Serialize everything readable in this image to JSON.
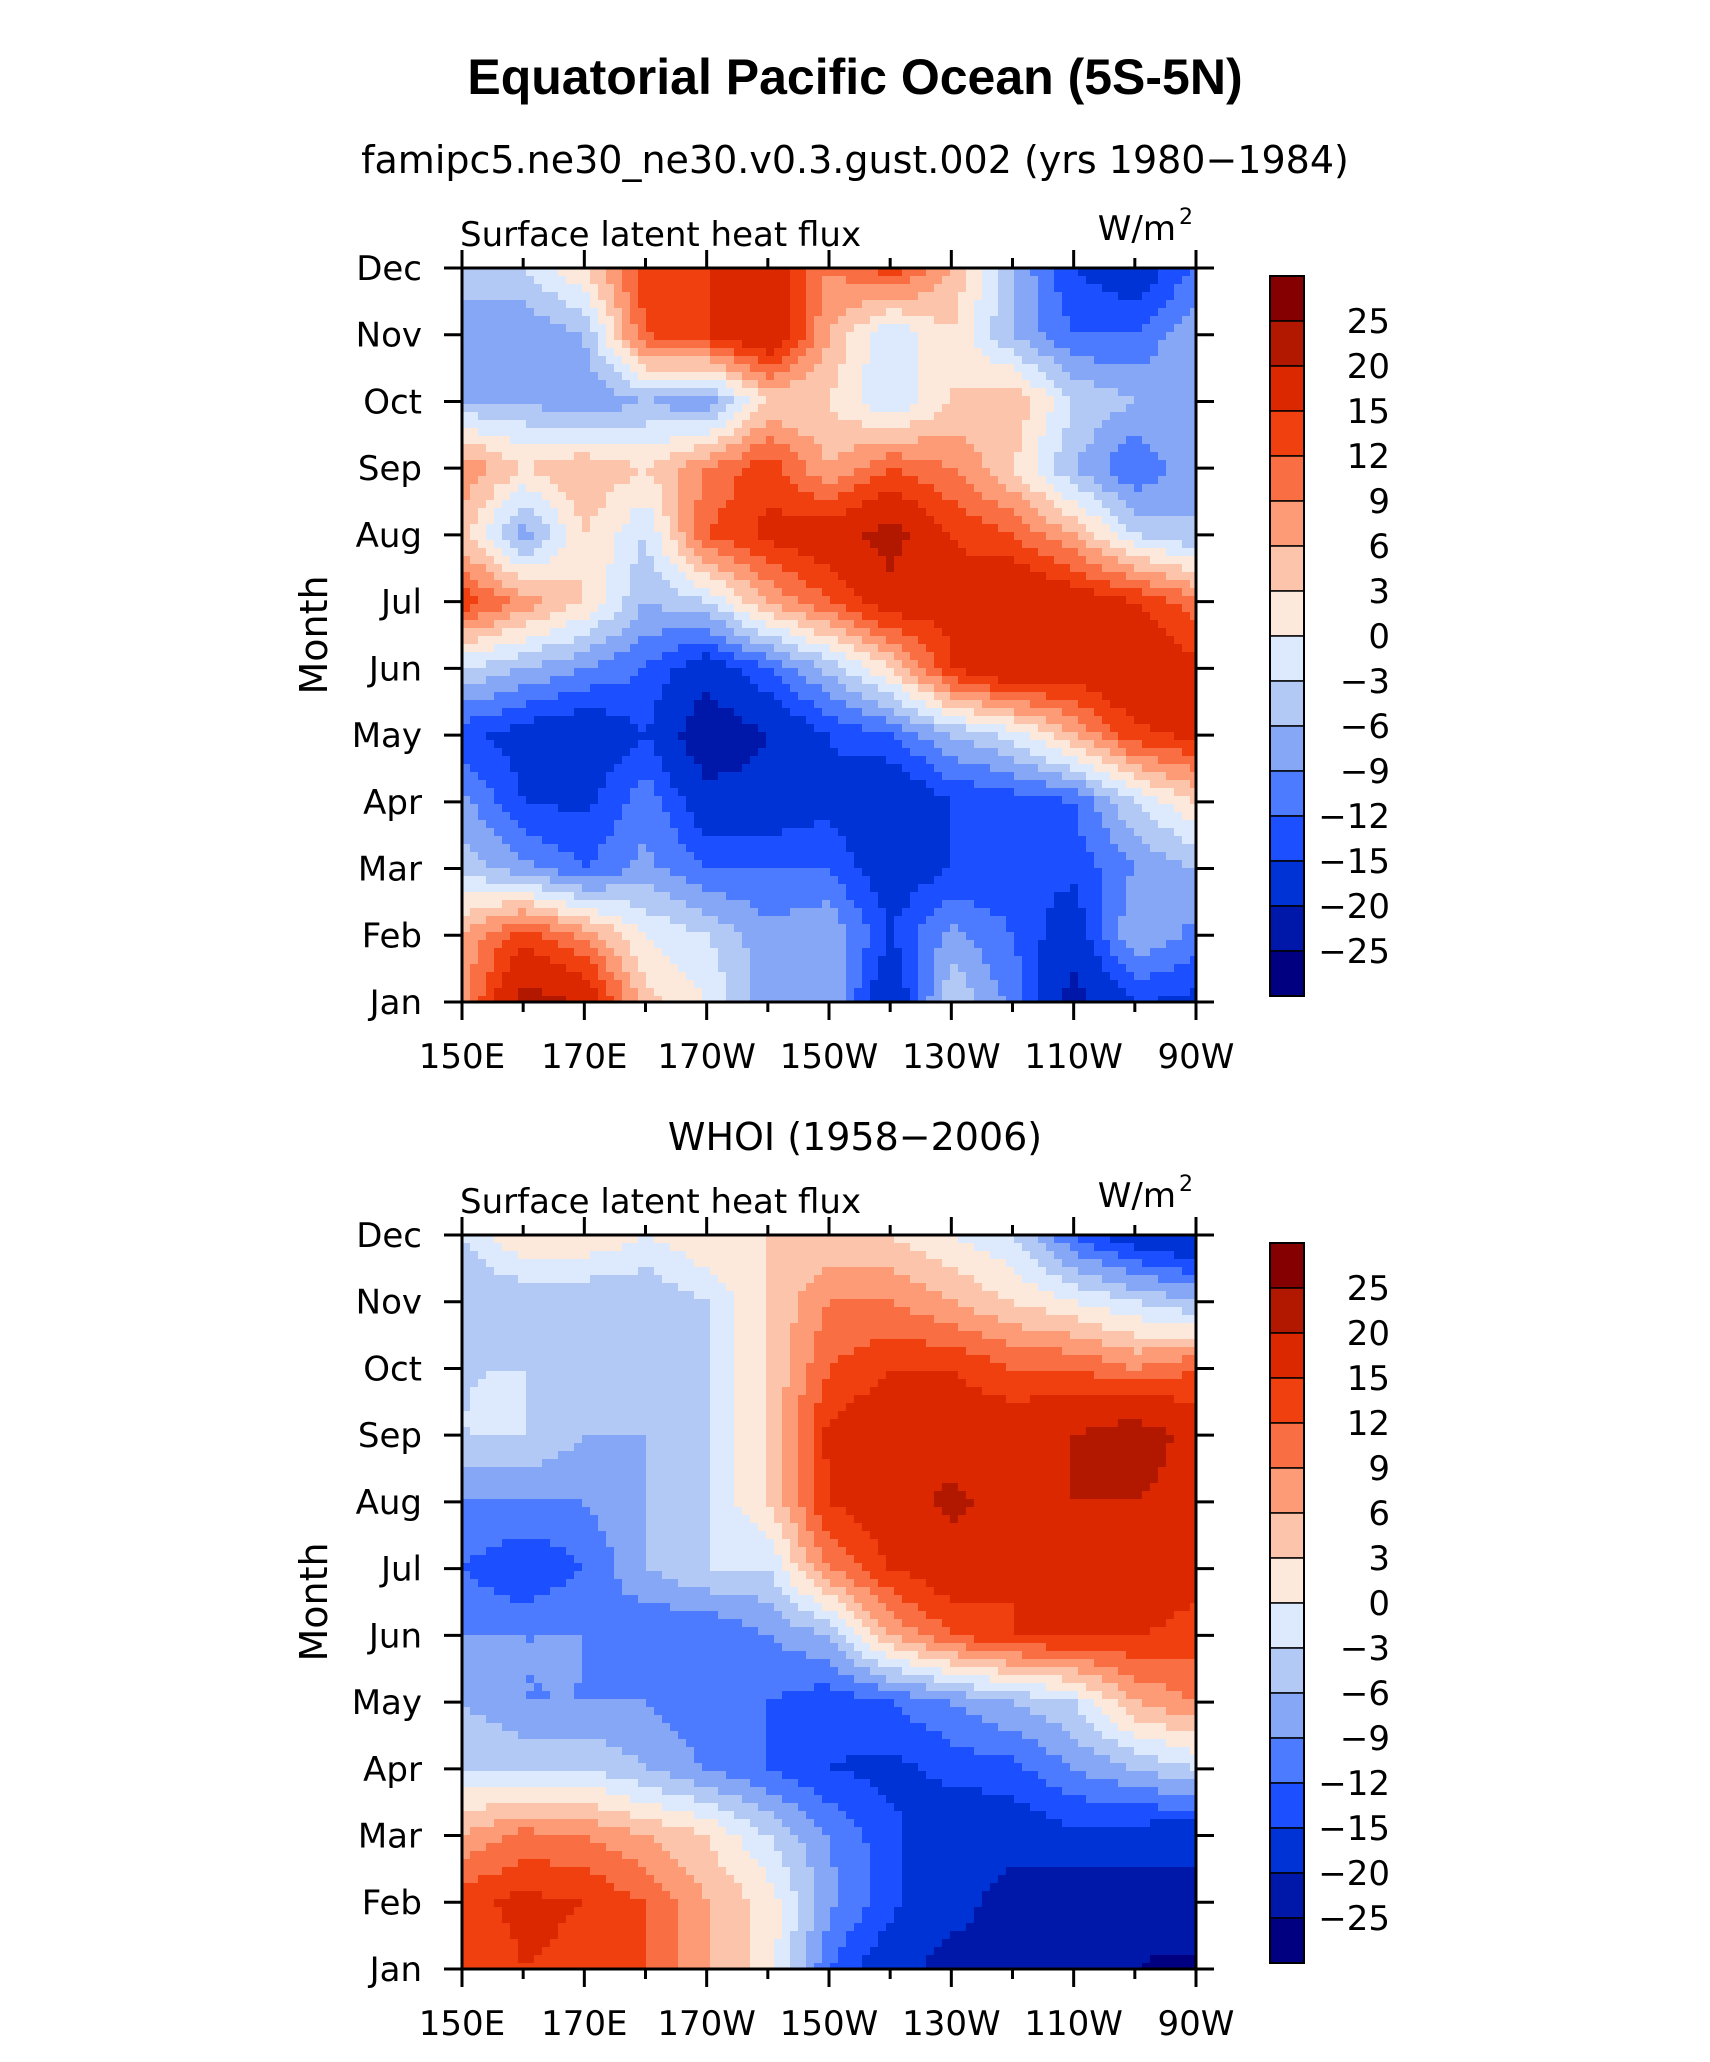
{
  "figure": {
    "title": "Equatorial Pacific Ocean (5S-5N)",
    "units": "W/m",
    "units_superscript": "2",
    "levels": [
      -25,
      -20,
      -15,
      -12,
      -9,
      -6,
      -3,
      0,
      3,
      6,
      9,
      12,
      15,
      20,
      25
    ],
    "level_labels": [
      "25",
      "20",
      "15",
      "12",
      "9",
      "6",
      "3",
      "0",
      "−3",
      "−6",
      "−9",
      "−12",
      "−15",
      "−20",
      "−25"
    ],
    "colors": [
      "#000080",
      "#0018aa",
      "#0033d6",
      "#1c4fff",
      "#4d7bff",
      "#86a7f6",
      "#b2c8f5",
      "#dde9fd",
      "#fde8dc",
      "#fcc4aa",
      "#fc9b75",
      "#fa6e43",
      "#f04010",
      "#dc2800",
      "#b21800",
      "#850000"
    ]
  },
  "chart_data": [
    {
      "type": "heatmap",
      "title": "famipc5.ne30_ne30.v0.3.gust.002 (yrs 1980−1984)",
      "left_title": "Surface latent heat flux",
      "ylabel": "Month",
      "x": [
        "150E",
        "160E",
        "170E",
        "180",
        "170W",
        "160W",
        "150W",
        "140W",
        "130W",
        "120W",
        "110W",
        "100W",
        "90W"
      ],
      "x_ticklabels": [
        "150E",
        "170E",
        "170W",
        "150W",
        "130W",
        "110W",
        "90W"
      ],
      "y": [
        "Jan",
        "Feb",
        "Mar",
        "Apr",
        "May",
        "Jun",
        "Jul",
        "Aug",
        "Sep",
        "Oct",
        "Nov",
        "Dec"
      ],
      "z": [
        [
          8,
          22,
          20,
          4,
          0,
          -8,
          -6,
          -20,
          -3,
          -10,
          -22,
          -15,
          -16
        ],
        [
          6,
          14,
          8,
          0,
          -3,
          -8,
          -6,
          -15,
          -8,
          -12,
          -18,
          -6,
          -10
        ],
        [
          -4,
          -8,
          -12,
          -8,
          -12,
          -12,
          -12,
          -18,
          -15,
          -14,
          -14,
          -9,
          -6
        ],
        [
          -8,
          -15,
          -16,
          -10,
          -18,
          -18,
          -16,
          -20,
          -15,
          -14,
          -12,
          -3,
          3
        ],
        [
          -14,
          -17,
          -19,
          -15,
          -24,
          -20,
          -15,
          -12,
          -6,
          -2,
          6,
          14,
          16
        ],
        [
          -3,
          -6,
          -9,
          -12,
          -18,
          -12,
          -5,
          3,
          15,
          20,
          18,
          20,
          16
        ],
        [
          14,
          8,
          3,
          -6,
          -3,
          6,
          12,
          18,
          16,
          20,
          18,
          15,
          10
        ],
        [
          4,
          -8,
          3,
          -3,
          12,
          16,
          18,
          22,
          15,
          12,
          6,
          -3,
          -6
        ],
        [
          9,
          3,
          6,
          3,
          9,
          14,
          6,
          12,
          9,
          3,
          -6,
          -12,
          -6
        ],
        [
          -6,
          -6,
          -9,
          -6,
          -9,
          3,
          3,
          -3,
          3,
          6,
          -3,
          -6,
          -6
        ],
        [
          -6,
          -9,
          -6,
          12,
          15,
          20,
          6,
          -3,
          3,
          -6,
          -12,
          -12,
          -6
        ],
        [
          -6,
          -3,
          3,
          14,
          15,
          18,
          9,
          14,
          6,
          -6,
          -15,
          -18,
          -12
        ]
      ],
      "levels_label": "W/m2"
    },
    {
      "type": "heatmap",
      "title": "WHOI (1958−2006)",
      "left_title": "Surface latent heat flux",
      "ylabel": "Month",
      "x": [
        "150E",
        "160E",
        "170E",
        "180",
        "170W",
        "160W",
        "150W",
        "140W",
        "130W",
        "120W",
        "110W",
        "100W",
        "90W"
      ],
      "x_ticklabels": [
        "150E",
        "170E",
        "170W",
        "150W",
        "130W",
        "110W",
        "90W"
      ],
      "y": [
        "Jan",
        "Feb",
        "Mar",
        "Apr",
        "May",
        "Jun",
        "Jul",
        "Aug",
        "Sep",
        "Oct",
        "Nov",
        "Dec"
      ],
      "z": [
        [
          12,
          15,
          14,
          12,
          6,
          2,
          -12,
          -18,
          -22,
          -23,
          -24,
          -25,
          -26
        ],
        [
          14,
          16,
          15,
          12,
          6,
          2,
          -8,
          -14,
          -18,
          -22,
          -24,
          -24,
          -22
        ],
        [
          6,
          10,
          9,
          6,
          3,
          -3,
          -9,
          -14,
          -18,
          -18,
          -16,
          -17,
          -18
        ],
        [
          -3,
          -3,
          -3,
          -6,
          -9,
          -12,
          -15,
          -16,
          -14,
          -13,
          -9,
          -6,
          -3
        ],
        [
          -6,
          -9,
          -9,
          -9,
          -12,
          -12,
          -14,
          -12,
          -9,
          -6,
          -3,
          6,
          9
        ],
        [
          -9,
          -9,
          -9,
          -12,
          -12,
          -9,
          -6,
          6,
          12,
          15,
          16,
          15,
          14
        ],
        [
          -12,
          -15,
          -12,
          -6,
          -3,
          -3,
          9,
          15,
          18,
          15,
          17,
          18,
          16
        ],
        [
          -9,
          -9,
          -9,
          -6,
          -3,
          3,
          15,
          18,
          21,
          18,
          20,
          20,
          18
        ],
        [
          -3,
          -3,
          -6,
          -6,
          -3,
          3,
          16,
          18,
          18,
          18,
          20,
          23,
          18
        ],
        [
          -3,
          -3,
          -3,
          -6,
          -3,
          3,
          12,
          15,
          15,
          12,
          12,
          9,
          12
        ],
        [
          -6,
          -6,
          -6,
          -6,
          -3,
          3,
          9,
          9,
          6,
          3,
          0,
          -3,
          -6
        ],
        [
          -3,
          3,
          3,
          0,
          3,
          3,
          3,
          3,
          0,
          -3,
          -12,
          -18,
          -20
        ]
      ],
      "levels_label": "W/m2"
    }
  ]
}
